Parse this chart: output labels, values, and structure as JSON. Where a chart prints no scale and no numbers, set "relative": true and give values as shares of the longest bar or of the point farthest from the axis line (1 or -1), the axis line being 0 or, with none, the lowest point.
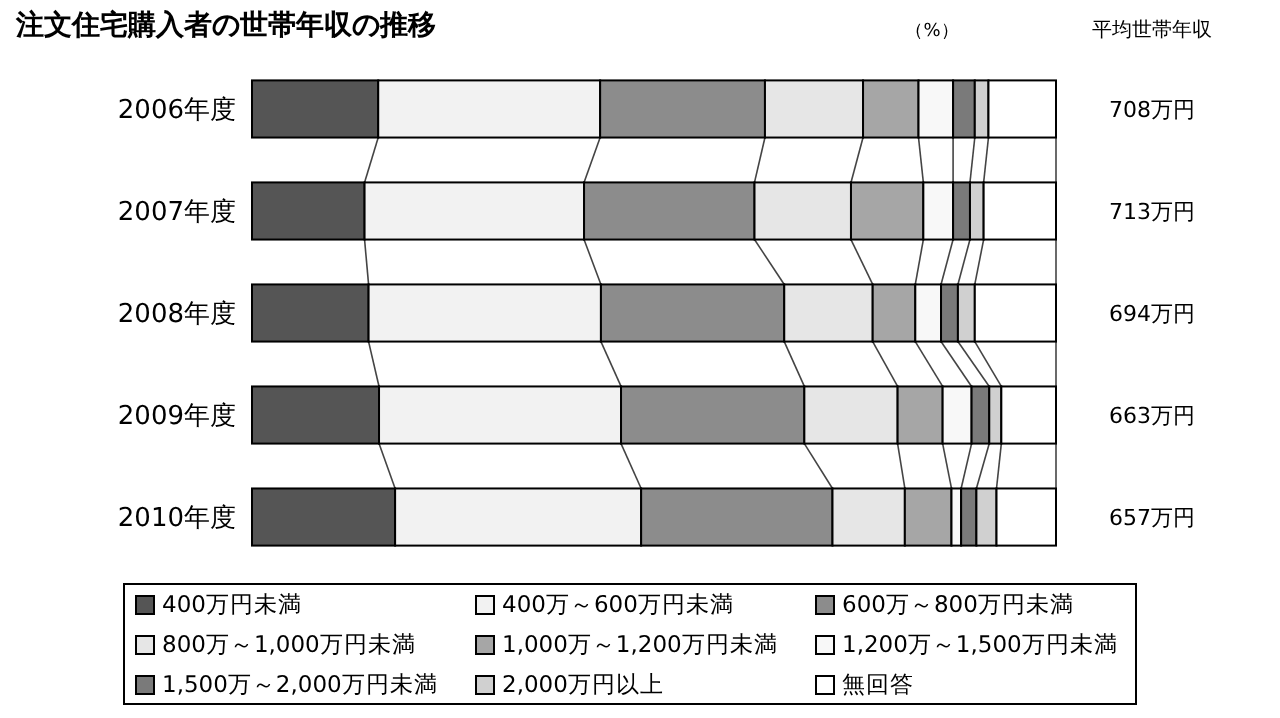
{
  "chart_data": {
    "type": "bar",
    "orientation": "horizontal",
    "stacked": true,
    "relative": true,
    "title": "注文住宅購入者の世帯年収の推移",
    "categories": [
      "2006年度",
      "2007年度",
      "2008年度",
      "2009年度",
      "2010年度"
    ],
    "series": [
      {
        "name": "400万円未満",
        "color": "#555555",
        "values": [
          0.157,
          0.14,
          0.145,
          0.158,
          0.178
        ]
      },
      {
        "name": "400万～600万円未満",
        "color": "#f2f2f2",
        "values": [
          0.276,
          0.273,
          0.289,
          0.301,
          0.306
        ]
      },
      {
        "name": "600万～800万円未満",
        "color": "#8c8c8c",
        "values": [
          0.205,
          0.212,
          0.228,
          0.228,
          0.238
        ]
      },
      {
        "name": "800万～1,000万円未満",
        "color": "#e6e6e6",
        "values": [
          0.122,
          0.12,
          0.11,
          0.116,
          0.09
        ]
      },
      {
        "name": "1,000万～1,200万円未満",
        "color": "#a6a6a6",
        "values": [
          0.069,
          0.09,
          0.053,
          0.056,
          0.058
        ]
      },
      {
        "name": "1,200万～1,500万円未満",
        "color": "#f8f8f8",
        "values": [
          0.043,
          0.037,
          0.032,
          0.036,
          0.012
        ]
      },
      {
        "name": "1,500万～2,000万円未満",
        "color": "#7a7a7a",
        "values": [
          0.027,
          0.021,
          0.021,
          0.022,
          0.019
        ]
      },
      {
        "name": "2,000万円以上",
        "color": "#d0d0d0",
        "values": [
          0.017,
          0.017,
          0.021,
          0.015,
          0.025
        ]
      },
      {
        "name": "無回答",
        "color": "#ffffff",
        "values": [
          0.084,
          0.09,
          0.101,
          0.068,
          0.074
        ]
      }
    ],
    "legend": "bottom",
    "annotations": [
      "（%）",
      "平均世帯年収",
      "708万円",
      "713万円",
      "694万円",
      "663万円",
      "657万円"
    ]
  }
}
